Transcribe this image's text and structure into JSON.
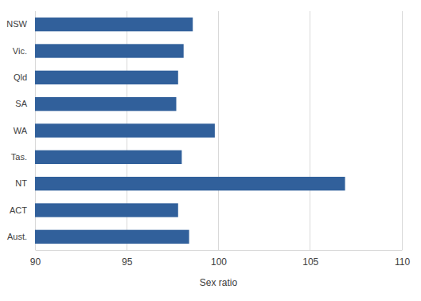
{
  "chart_data": {
    "type": "bar",
    "orientation": "horizontal",
    "categories": [
      "NSW",
      "Vic.",
      "Qld",
      "SA",
      "WA",
      "Tas.",
      "NT",
      "ACT",
      "Aust."
    ],
    "values": [
      98.6,
      98.1,
      97.8,
      97.7,
      99.8,
      98.0,
      106.9,
      97.8,
      98.4
    ],
    "color": "#31609b",
    "x_label": "Sex ratio",
    "xlim": [
      90,
      110
    ],
    "xticks": [
      90,
      95,
      100,
      105,
      110
    ],
    "grid": true
  }
}
